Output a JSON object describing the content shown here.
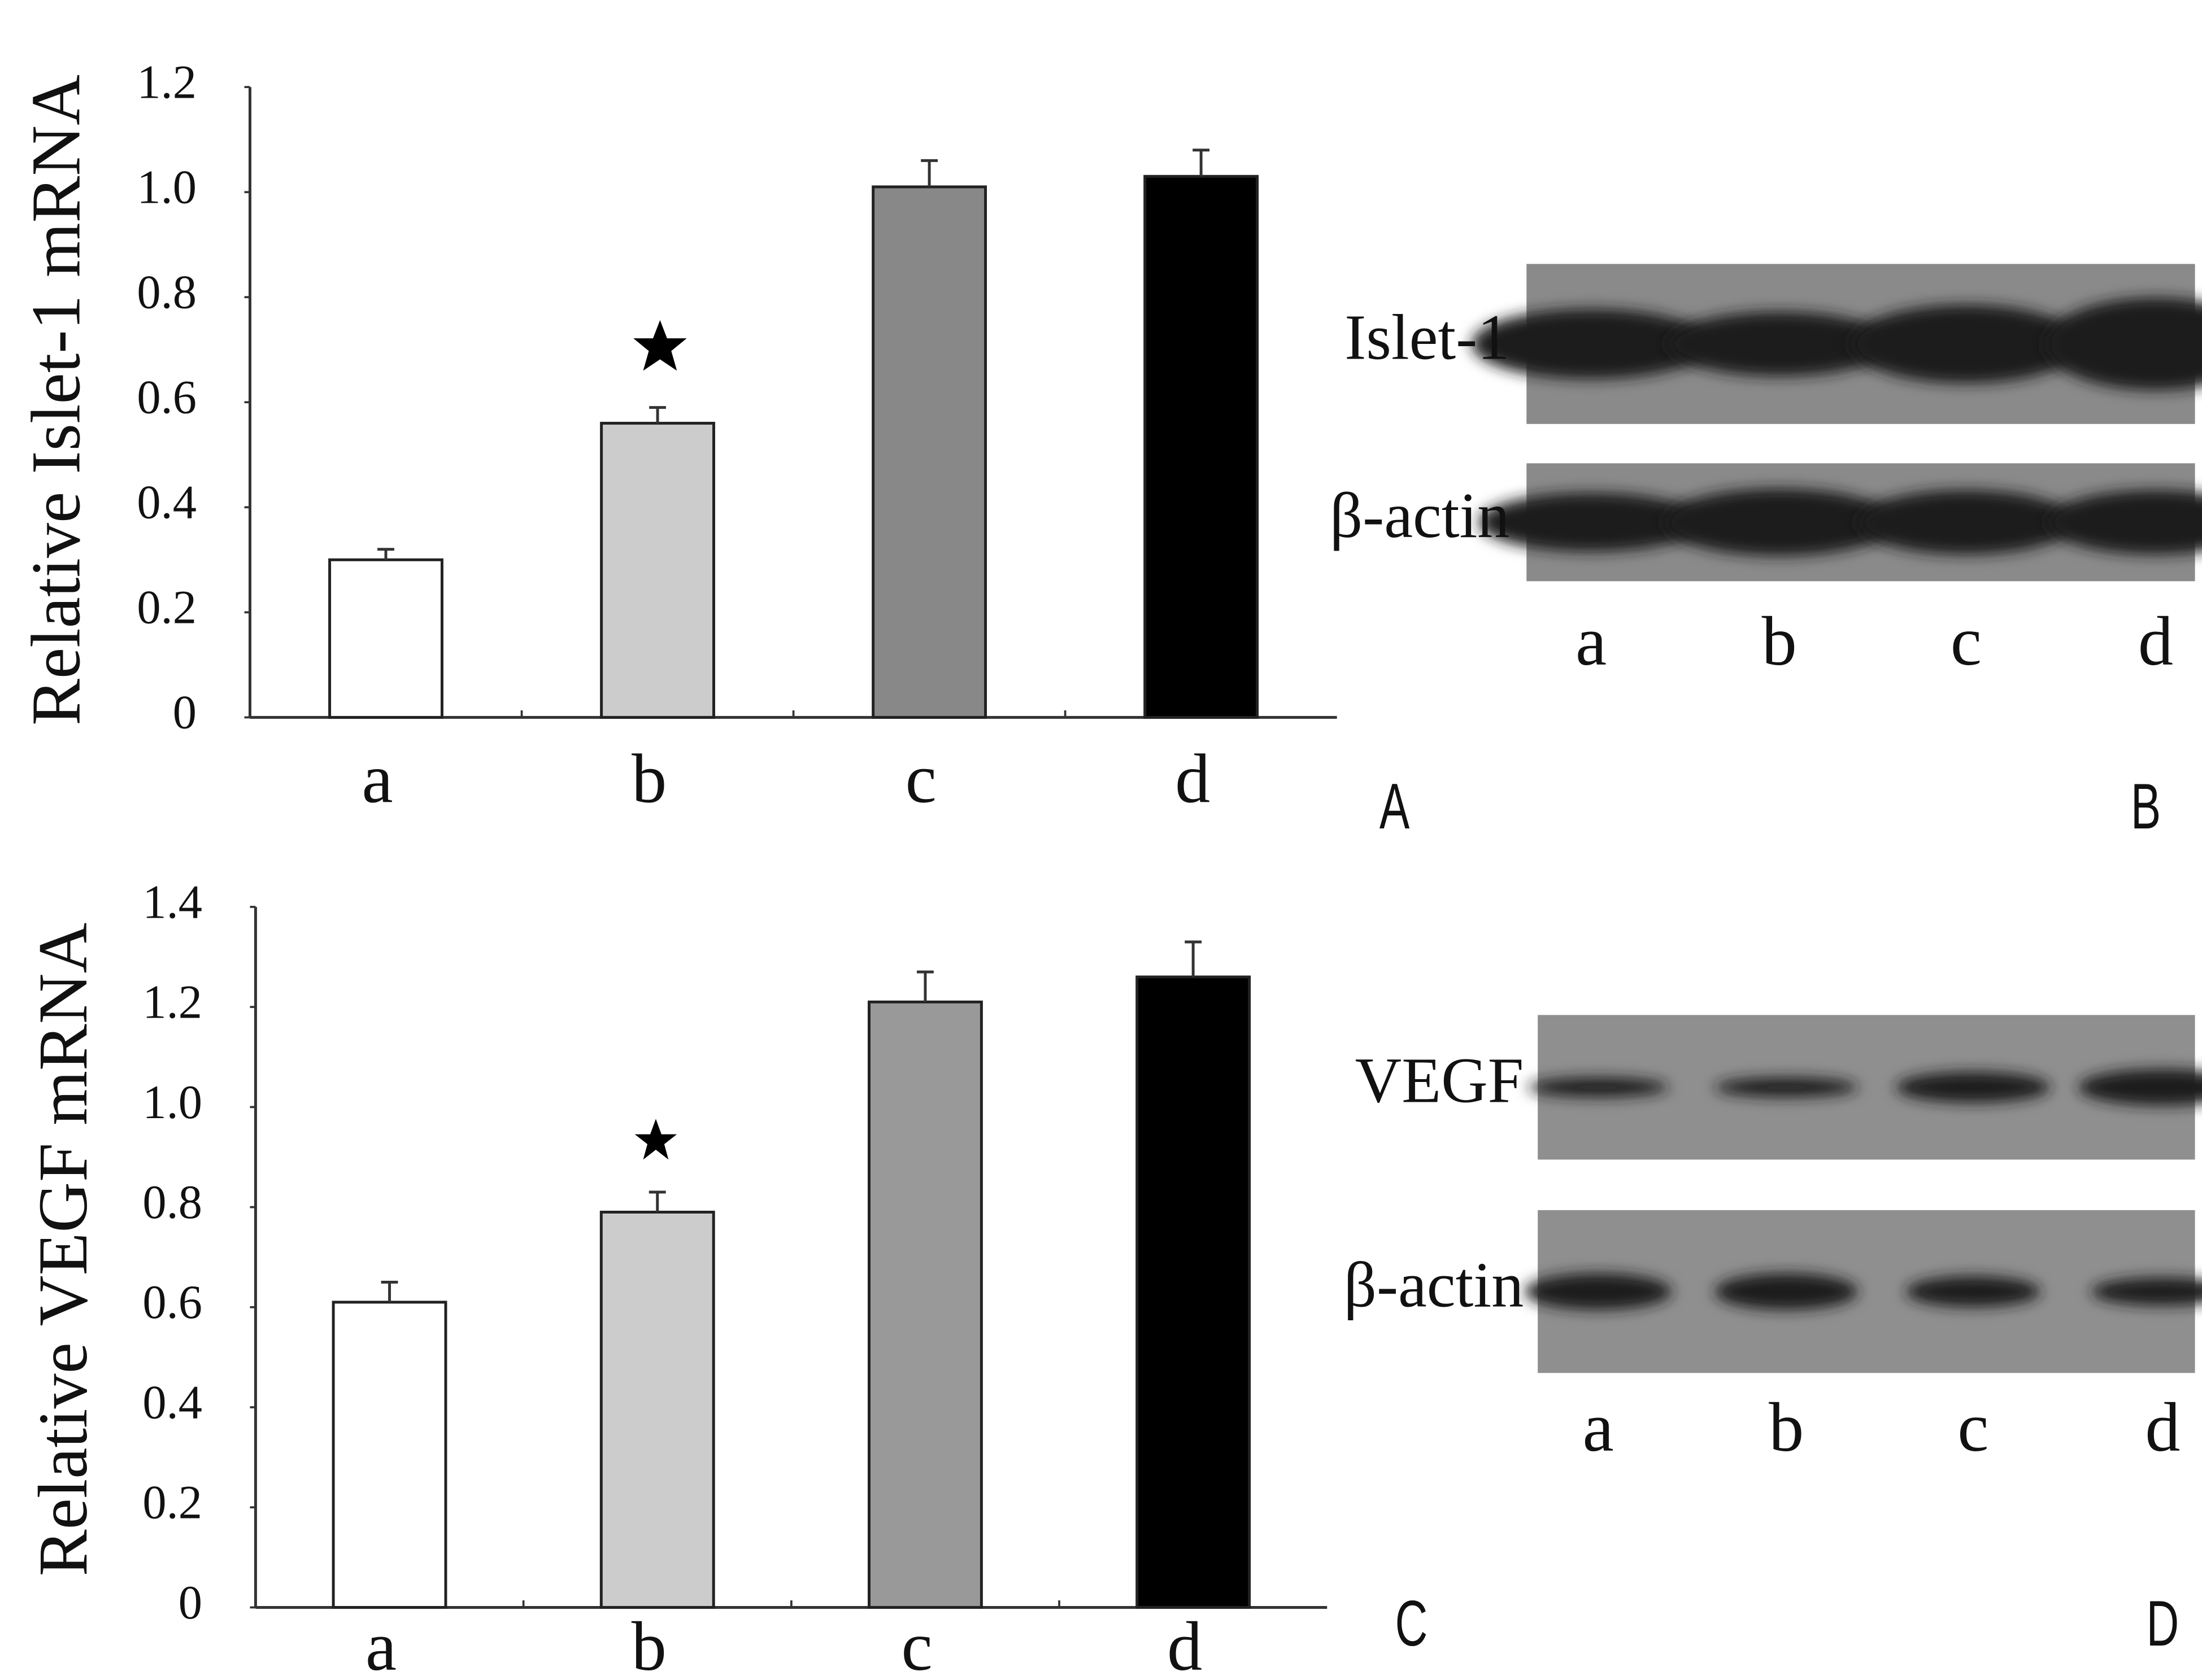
{
  "chart_data": [
    {
      "type": "bar",
      "panel_label": "A",
      "y_label": "Relative Islet-1 mRNA",
      "categories": [
        "a",
        "b",
        "c",
        "d"
      ],
      "values": [
        0.3,
        0.56,
        1.01,
        1.03
      ],
      "errors": [
        0.02,
        0.03,
        0.05,
        0.05
      ],
      "colors": [
        "#ffffff",
        "#cccccc",
        "#888888",
        "#000000"
      ],
      "ylim": [
        0,
        1.2
      ],
      "yticks": [
        0,
        0.2,
        0.4,
        0.6,
        0.8,
        {
          "value": 1,
          "label": "1.0"
        },
        1.2
      ],
      "grid": false
    },
    {
      "type": "bar",
      "panel_label": "C",
      "y_label": "Relative VEGF  mRNA",
      "categories": [
        "a",
        "b",
        "c",
        "d"
      ],
      "values": [
        0.61,
        0.79,
        1.21,
        1.26
      ],
      "errors": [
        0.04,
        0.04,
        0.06,
        0.07
      ],
      "colors": [
        "#ffffff",
        "#cccccc",
        "#999999",
        "#000000"
      ],
      "ylim": [
        0,
        1.4
      ],
      "yticks": [
        0,
        0.2,
        0.4,
        0.6,
        0.8,
        {
          "value": 1,
          "label": "1.0"
        },
        1.2,
        1.4
      ],
      "grid": false
    }
  ],
  "blots": [
    {
      "panel_label": "B",
      "rows": [
        "Islet-1",
        "β-actin"
      ],
      "lanes": [
        "a",
        "b",
        "c",
        "d"
      ]
    },
    {
      "panel_label": "D",
      "rows": [
        "VEGF",
        "β-actin"
      ],
      "lanes": [
        "a",
        "b",
        "c",
        "d"
      ]
    }
  ]
}
